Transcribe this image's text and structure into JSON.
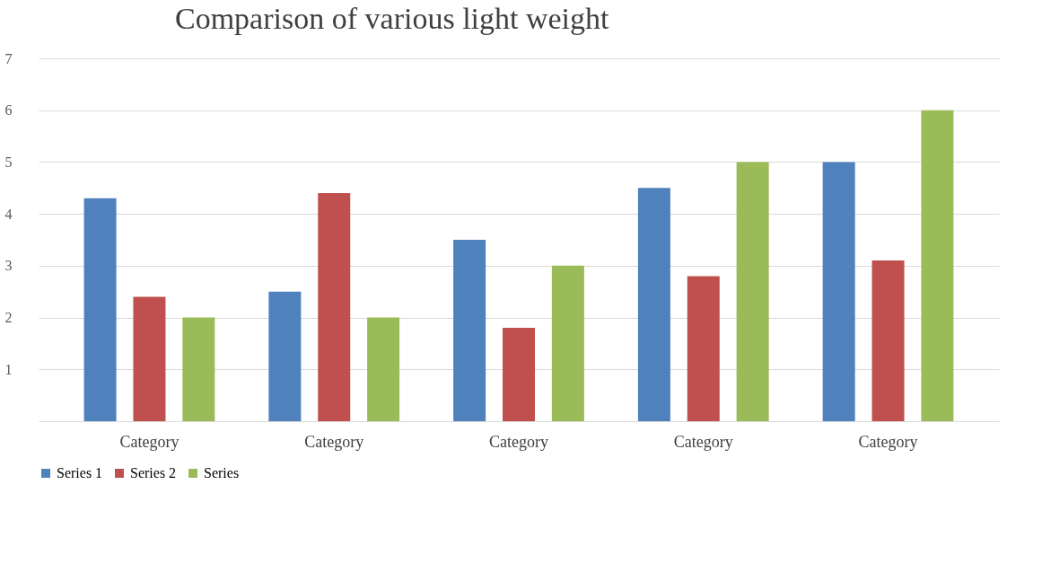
{
  "chart_data": {
    "type": "bar",
    "title": "Comparison of various light weight",
    "categories": [
      "Category",
      "Category",
      "Category",
      "Category",
      "Category"
    ],
    "series": [
      {
        "name": "Series 1",
        "color": "#4f81bd",
        "values": [
          4.3,
          2.5,
          3.5,
          4.5,
          5
        ]
      },
      {
        "name": "Series 2",
        "color": "#c0504d",
        "values": [
          2.4,
          4.4,
          1.8,
          2.8,
          3.1
        ]
      },
      {
        "name": "Series",
        "color": "#9bbb59",
        "values": [
          2,
          2,
          3,
          5,
          6
        ]
      }
    ],
    "ylim": [
      0,
      7
    ],
    "yticks": [
      1,
      2,
      3,
      4,
      5,
      6,
      7
    ],
    "grid": "y",
    "legend": "bottom"
  }
}
